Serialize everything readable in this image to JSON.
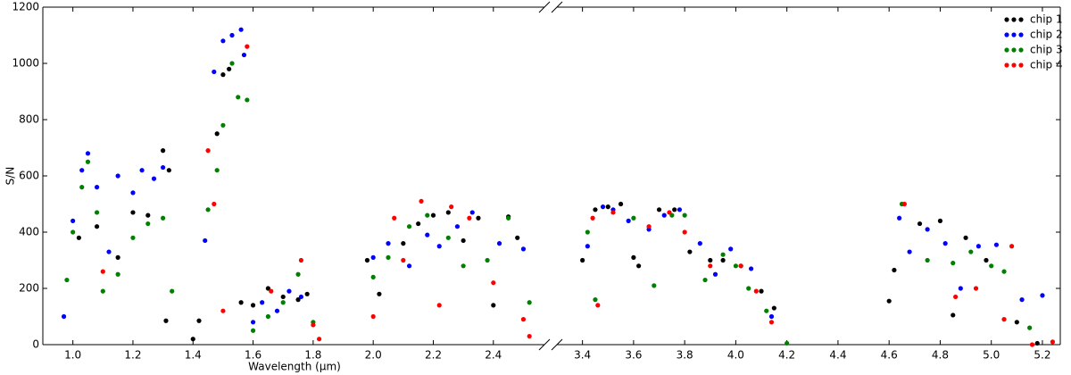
{
  "chart_data": {
    "type": "scatter",
    "xlabel": "Wavelength (μm)",
    "ylabel": "S/N",
    "ylim": [
      0,
      1200
    ],
    "yticks": [
      0,
      200,
      400,
      600,
      800,
      1000,
      1200
    ],
    "legend": "upper right",
    "x_segments": [
      {
        "xlim": [
          0.9,
          2.57
        ],
        "xticks": [
          {
            "value": 1.0,
            "label": "1.0"
          },
          1.2,
          1.4,
          1.6,
          1.8,
          {
            "value": 2.0,
            "label": "2.0"
          },
          2.2,
          2.4
        ]
      },
      {
        "xlim": [
          3.3,
          5.27
        ],
        "xticks": [
          3.4,
          3.6,
          3.8,
          {
            "value": 4.0,
            "label": "4.0"
          },
          4.2,
          4.4,
          4.6,
          4.8,
          {
            "value": 5.0,
            "label": "5.0"
          },
          5.2
        ]
      }
    ],
    "series": [
      {
        "name": "chip 1",
        "color": "#000000",
        "x": [
          1.02,
          1.08,
          1.15,
          1.2,
          1.25,
          1.3,
          1.31,
          1.32,
          1.4,
          1.42,
          1.48,
          1.5,
          1.52,
          1.56,
          1.6,
          1.65,
          1.7,
          1.75,
          1.78,
          1.98,
          2.02,
          2.1,
          2.15,
          2.2,
          2.25,
          2.3,
          2.35,
          2.4,
          2.45,
          2.48,
          3.4,
          3.45,
          3.5,
          3.55,
          3.6,
          3.62,
          3.7,
          3.76,
          3.82,
          3.9,
          3.95,
          4.02,
          4.1,
          4.15,
          4.6,
          4.62,
          4.72,
          4.8,
          4.85,
          4.9,
          4.98,
          5.1,
          5.18
        ],
        "values": [
          380,
          420,
          310,
          470,
          460,
          690,
          85,
          620,
          20,
          85,
          750,
          960,
          980,
          150,
          140,
          200,
          170,
          160,
          180,
          300,
          180,
          360,
          430,
          460,
          470,
          370,
          450,
          140,
          455,
          380,
          300,
          480,
          490,
          500,
          310,
          280,
          480,
          480,
          330,
          300,
          300,
          280,
          190,
          130,
          155,
          265,
          430,
          440,
          105,
          380,
          300,
          80,
          5
        ]
      },
      {
        "name": "chip 2",
        "color": "#0000ff",
        "x": [
          0.97,
          1.0,
          1.03,
          1.05,
          1.08,
          1.12,
          1.15,
          1.2,
          1.23,
          1.27,
          1.3,
          1.44,
          1.47,
          1.5,
          1.53,
          1.56,
          1.57,
          1.6,
          1.63,
          1.68,
          1.72,
          1.76,
          2.0,
          2.05,
          2.12,
          2.18,
          2.22,
          2.28,
          2.33,
          2.42,
          2.5,
          3.42,
          3.48,
          3.52,
          3.58,
          3.66,
          3.72,
          3.78,
          3.86,
          3.92,
          3.98,
          4.06,
          4.14,
          4.64,
          4.68,
          4.75,
          4.82,
          4.88,
          4.95,
          5.02,
          5.12,
          5.2
        ],
        "values": [
          100,
          440,
          620,
          680,
          560,
          330,
          600,
          540,
          620,
          590,
          630,
          370,
          970,
          1080,
          1100,
          1120,
          1030,
          80,
          150,
          120,
          190,
          170,
          310,
          360,
          280,
          390,
          350,
          420,
          470,
          360,
          340,
          350,
          490,
          480,
          440,
          410,
          460,
          480,
          360,
          250,
          340,
          270,
          100,
          450,
          330,
          410,
          360,
          200,
          350,
          355,
          160,
          175
        ]
      },
      {
        "name": "chip 3",
        "color": "#008000",
        "x": [
          0.98,
          1.0,
          1.03,
          1.05,
          1.08,
          1.1,
          1.15,
          1.2,
          1.25,
          1.3,
          1.33,
          1.45,
          1.48,
          1.5,
          1.53,
          1.55,
          1.58,
          1.6,
          1.65,
          1.7,
          1.75,
          1.8,
          2.0,
          2.05,
          2.12,
          2.18,
          2.25,
          2.3,
          2.38,
          2.45,
          2.52,
          3.42,
          3.45,
          3.6,
          3.68,
          3.75,
          3.8,
          3.88,
          3.95,
          4.0,
          4.05,
          4.12,
          4.2,
          4.65,
          4.75,
          4.85,
          4.92,
          5.0,
          5.05,
          5.15
        ],
        "values": [
          230,
          400,
          560,
          650,
          470,
          190,
          250,
          380,
          430,
          450,
          190,
          480,
          620,
          780,
          1000,
          880,
          870,
          50,
          100,
          150,
          250,
          80,
          240,
          310,
          420,
          460,
          380,
          280,
          300,
          450,
          150,
          400,
          160,
          450,
          210,
          460,
          460,
          230,
          320,
          280,
          200,
          120,
          5,
          500,
          300,
          290,
          330,
          280,
          260,
          60
        ]
      },
      {
        "name": "chip 4",
        "color": "#ff0000",
        "x": [
          1.1,
          1.45,
          1.47,
          1.5,
          1.58,
          1.66,
          1.76,
          1.8,
          1.82,
          2.0,
          2.07,
          2.1,
          2.16,
          2.22,
          2.26,
          2.32,
          2.4,
          2.5,
          2.52,
          3.44,
          3.46,
          3.52,
          3.66,
          3.74,
          3.8,
          3.9,
          4.02,
          4.08,
          4.14,
          4.66,
          4.86,
          4.94,
          5.05,
          5.08,
          5.16,
          5.24
        ],
        "values": [
          260,
          690,
          500,
          120,
          1060,
          190,
          300,
          70,
          20,
          100,
          450,
          300,
          510,
          140,
          490,
          450,
          220,
          90,
          30,
          450,
          140,
          470,
          420,
          470,
          400,
          280,
          280,
          190,
          80,
          500,
          170,
          200,
          90,
          350,
          0,
          10
        ]
      }
    ]
  }
}
